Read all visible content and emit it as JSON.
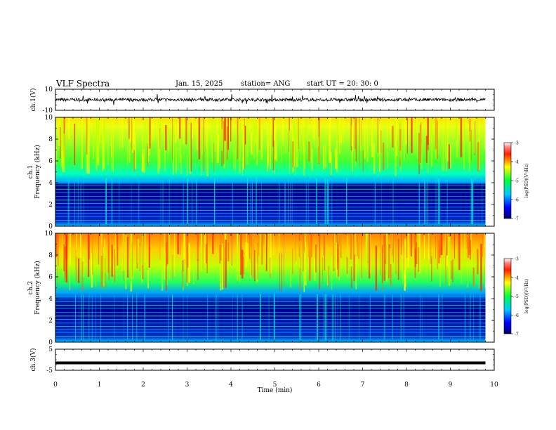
{
  "header": {
    "title": "VLF Spectra",
    "date": "Jan. 15, 2025",
    "station": "station= ANG",
    "start": "start UT = 20: 30: 0"
  },
  "chart_data": [
    {
      "type": "line",
      "name": "ch1-waveform",
      "ylabel": "ch.1(V)",
      "ylim": [
        -10,
        10
      ],
      "yticks": [
        "10",
        "-10"
      ],
      "baseline": 0,
      "description_values": {
        "typical_amplitude_v": 1.5
      }
    },
    {
      "type": "heatmap",
      "name": "ch1-spectrogram",
      "ylabel_line1": "ch.1",
      "ylabel_line2": "Frequency (kHz)",
      "ylim": [
        0,
        10
      ],
      "yticks": [
        "0",
        "2",
        "4",
        "6",
        "8",
        "10"
      ],
      "colorbar": {
        "label": "log(PSD)(V²/Hz)",
        "range": [
          -7,
          -3
        ],
        "ticks": [
          "-3",
          "-4",
          "-5",
          "-6",
          "-7"
        ]
      }
    },
    {
      "type": "heatmap",
      "name": "ch2-spectrogram",
      "ylabel_line1": "ch.2",
      "ylabel_line2": "Frequency (kHz)",
      "ylim": [
        0,
        10
      ],
      "yticks": [
        "0",
        "2",
        "4",
        "6",
        "8",
        "10"
      ],
      "colorbar": {
        "label": "log(PSD)(V²/Hz)",
        "range": [
          -7,
          -3
        ],
        "ticks": [
          "-3",
          "-4",
          "-5",
          "-6",
          "-7"
        ]
      }
    },
    {
      "type": "line",
      "name": "ch3-waveform",
      "ylabel": "ch.3(V)",
      "ylim": [
        -5,
        5
      ],
      "yticks": [
        "5",
        "-5"
      ],
      "baseline": -1.5
    }
  ],
  "xaxis": {
    "label": "Time (min)",
    "range": [
      0,
      10
    ],
    "ticks": [
      "0",
      "1",
      "2",
      "3",
      "4",
      "5",
      "6",
      "7",
      "8",
      "9",
      "10"
    ]
  }
}
